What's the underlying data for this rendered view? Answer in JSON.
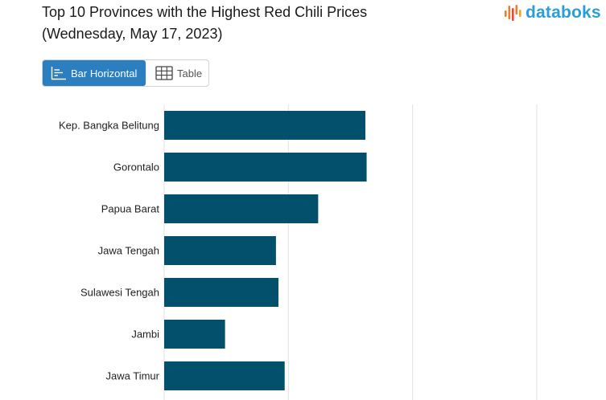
{
  "header": {
    "title_line1": "Top 10 Provinces with the Highest Red Chili Prices",
    "title_line2": "(Wednesday, May 17, 2023)",
    "logo_text": "databoks"
  },
  "view_toggle": {
    "bar_label": "Bar Horizontal",
    "table_label": "Table"
  },
  "colors": {
    "bar": "#02506b",
    "grid": "#e2e2e2",
    "accent": "#2b7ec0",
    "logo_blue": "#2a9ed8",
    "logo_orange": "#f07c2a"
  },
  "chart_data": {
    "type": "bar",
    "orientation": "horizontal",
    "categories": [
      "Kep. Bangka Belitung",
      "Gorontalo",
      "Papua Barat",
      "Jawa Tengah",
      "Sulawesi Tengah",
      "Jambi",
      "Jawa Timur"
    ],
    "values": [
      81000,
      81500,
      62000,
      45000,
      46000,
      24500,
      48500
    ],
    "xlim": [
      0,
      180000
    ],
    "grid": true
  }
}
